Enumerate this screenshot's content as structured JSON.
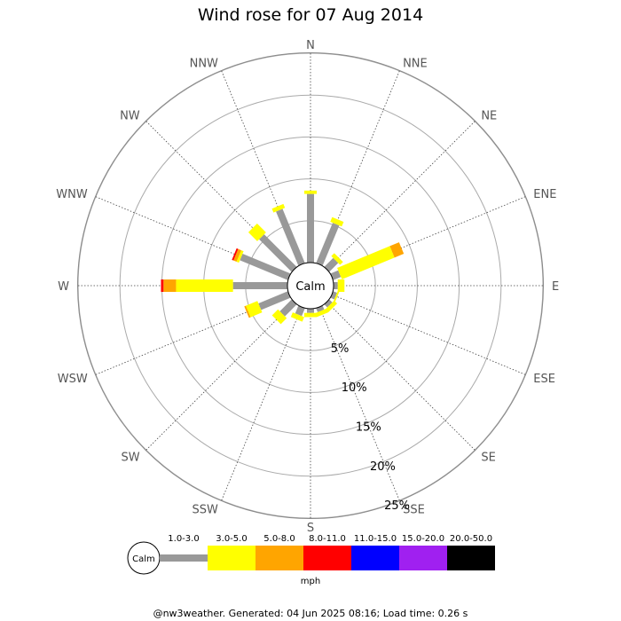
{
  "chart_data": {
    "type": "wind-rose",
    "title": "Wind rose for 07 Aug 2014",
    "center_label": "Calm",
    "directions": [
      "N",
      "NNE",
      "NE",
      "ENE",
      "E",
      "ESE",
      "SE",
      "SSE",
      "S",
      "SSW",
      "SW",
      "WSW",
      "W",
      "WNW",
      "NW",
      "NNW"
    ],
    "rings": [
      5,
      10,
      15,
      20,
      25
    ],
    "ring_labels": [
      "5%",
      "10%",
      "15%",
      "20%",
      "25%"
    ],
    "unit_label": "mph",
    "speed_bins": [
      {
        "label": "1.0-3.0",
        "color": "#999999"
      },
      {
        "label": "3.0-5.0",
        "color": "#ffff00"
      },
      {
        "label": "5.0-8.0",
        "color": "#ffa500"
      },
      {
        "label": "8.0-11.0",
        "color": "#ff0000"
      },
      {
        "label": "11.0-15.0",
        "color": "#0000ff"
      },
      {
        "label": "15.0-20.0",
        "color": "#a020f0"
      },
      {
        "label": "20.0-50.0",
        "color": "#000000"
      }
    ],
    "calm_percent": 3,
    "series": [
      {
        "direction": "N",
        "values": [
          8.2,
          0.4,
          0,
          0,
          0,
          0,
          0
        ]
      },
      {
        "direction": "NNE",
        "values": [
          5.2,
          0.6,
          0,
          0,
          0,
          0,
          0
        ]
      },
      {
        "direction": "NE",
        "values": [
          1.5,
          0.5,
          0,
          0,
          0,
          0,
          0
        ]
      },
      {
        "direction": "ENE",
        "values": [
          1.0,
          6.8,
          1.2,
          0,
          0,
          0,
          0
        ]
      },
      {
        "direction": "E",
        "values": [
          0.5,
          0.8,
          0,
          0,
          0,
          0,
          0
        ]
      },
      {
        "direction": "ESE",
        "values": [
          0.5,
          0.2,
          0,
          0,
          0,
          0,
          0
        ]
      },
      {
        "direction": "SE",
        "values": [
          0.5,
          0.5,
          0,
          0,
          0,
          0,
          0
        ]
      },
      {
        "direction": "SSE",
        "values": [
          0.5,
          0.5,
          0,
          0,
          0,
          0,
          0
        ]
      },
      {
        "direction": "S",
        "values": [
          0.5,
          0.5,
          0,
          0,
          0,
          0,
          0
        ]
      },
      {
        "direction": "SSW",
        "values": [
          1.0,
          0.6,
          0,
          0,
          0,
          0,
          0
        ]
      },
      {
        "direction": "SW",
        "values": [
          2.0,
          1.0,
          0,
          0,
          0,
          0,
          0
        ]
      },
      {
        "direction": "WSW",
        "values": [
          3.8,
          1.5,
          0.2,
          0,
          0,
          0,
          0
        ]
      },
      {
        "direction": "W",
        "values": [
          6.5,
          6.8,
          1.5,
          0.3,
          0,
          0,
          0
        ]
      },
      {
        "direction": "WNW",
        "values": [
          6.2,
          0.3,
          0.4,
          0.2,
          0,
          0,
          0
        ]
      },
      {
        "direction": "NW",
        "values": [
          5.5,
          1.5,
          0,
          0,
          0,
          0,
          0
        ]
      },
      {
        "direction": "NNW",
        "values": [
          7.0,
          0.5,
          0,
          0,
          0,
          0,
          0
        ]
      }
    ]
  },
  "footer": "@nw3weather. Generated: 04 Jun 2025 08:16; Load time: 0.26 s"
}
